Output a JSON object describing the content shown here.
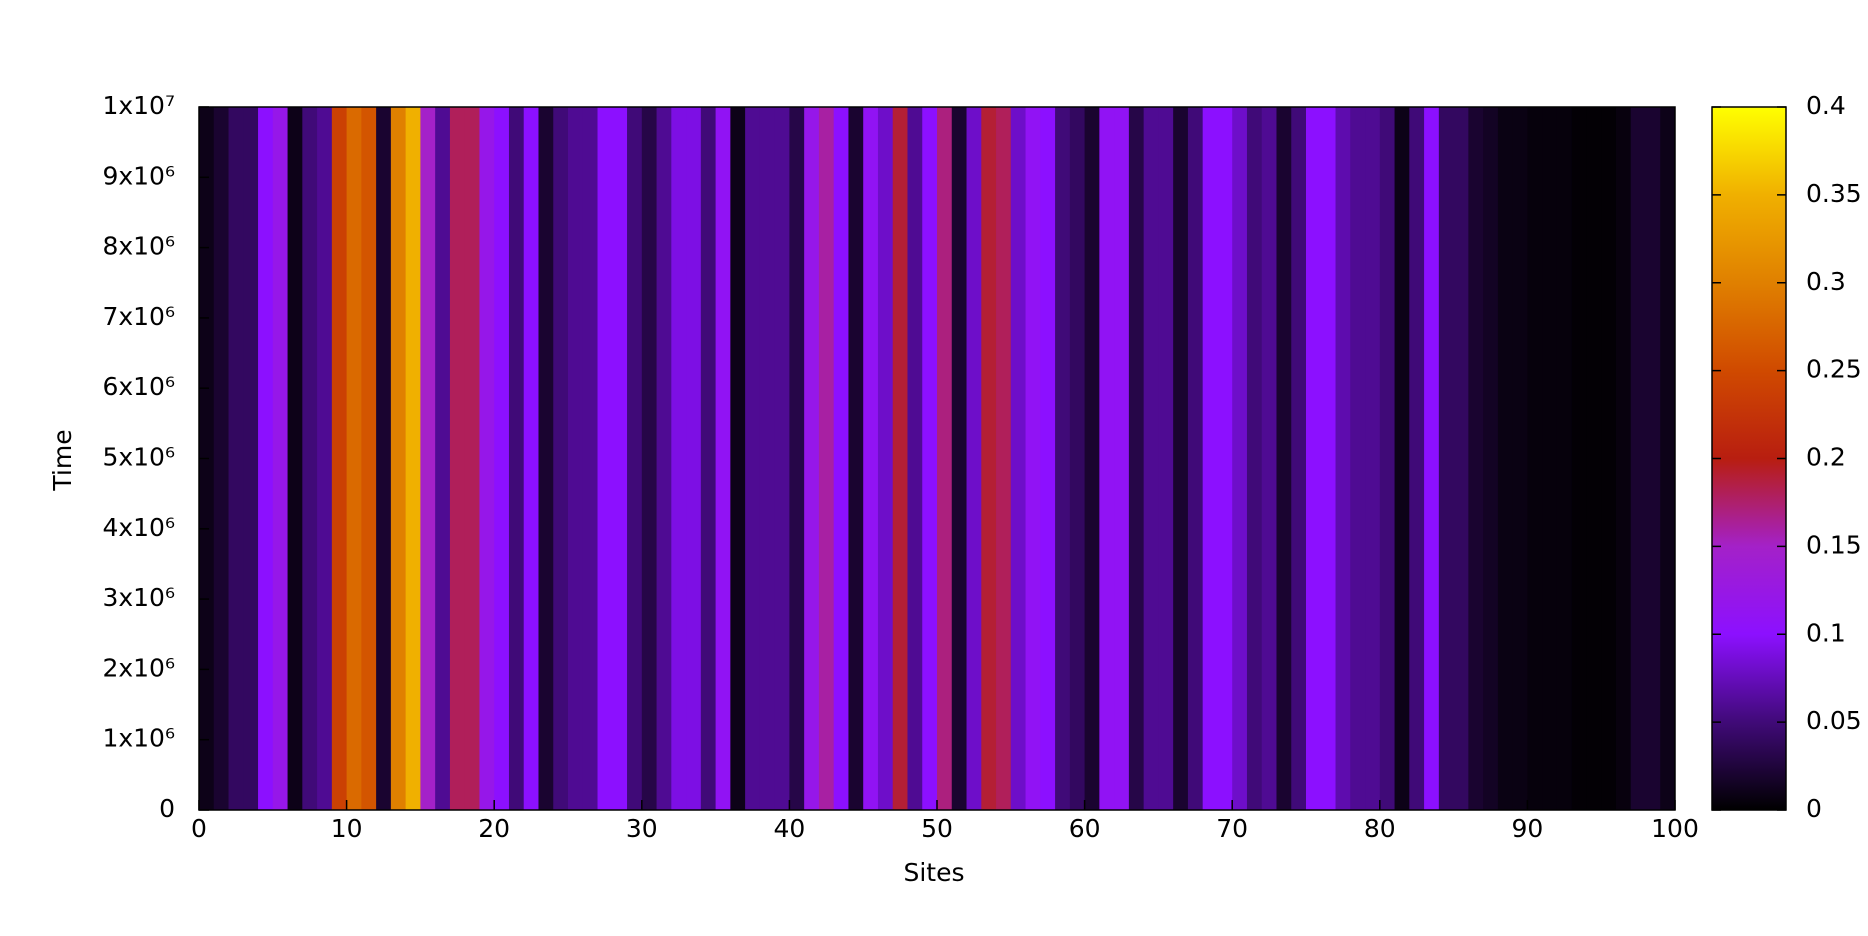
{
  "chart_data": {
    "type": "heatmap",
    "x_label": "Sites",
    "y_label": "Time",
    "x": [
      0.5,
      1.5,
      2.5,
      3.5,
      4.5,
      5.5,
      6.5,
      7.5,
      8.5,
      9.5,
      10.5,
      11.5,
      12.5,
      13.5,
      14.5,
      15.5,
      16.5,
      17.5,
      18.5,
      19.5,
      20.5,
      21.5,
      22.5,
      23.5,
      24.5,
      25.5,
      26.5,
      27.5,
      28.5,
      29.5,
      30.5,
      31.5,
      32.5,
      33.5,
      34.5,
      35.5,
      36.5,
      37.5,
      38.5,
      39.5,
      40.5,
      41.5,
      42.5,
      43.5,
      44.5,
      45.5,
      46.5,
      47.5,
      48.5,
      49.5,
      50.5,
      51.5,
      52.5,
      53.5,
      54.5,
      55.5,
      56.5,
      57.5,
      58.5,
      59.5,
      60.5,
      61.5,
      62.5,
      63.5,
      64.5,
      65.5,
      66.5,
      67.5,
      68.5,
      69.5,
      70.5,
      71.5,
      72.5,
      73.5,
      74.5,
      75.5,
      76.5,
      77.5,
      78.5,
      79.5,
      80.5,
      81.5,
      82.5,
      83.5,
      84.5,
      85.5,
      86.5,
      87.5,
      88.5,
      89.5,
      90.5,
      91.5,
      92.5,
      93.5,
      94.5,
      95.5,
      96.5,
      97.5,
      98.5,
      99.5
    ],
    "values": [
      0.01,
      0.02,
      0.04,
      0.04,
      0.1,
      0.12,
      0.01,
      0.05,
      0.06,
      0.24,
      0.28,
      0.26,
      0.02,
      0.3,
      0.35,
      0.15,
      0.06,
      0.18,
      0.18,
      0.12,
      0.1,
      0.05,
      0.1,
      0.02,
      0.05,
      0.06,
      0.06,
      0.1,
      0.1,
      0.05,
      0.03,
      0.06,
      0.09,
      0.09,
      0.05,
      0.11,
      0.01,
      0.06,
      0.06,
      0.06,
      0.03,
      0.12,
      0.16,
      0.1,
      0.02,
      0.11,
      0.08,
      0.19,
      0.06,
      0.1,
      0.17,
      0.02,
      0.08,
      0.19,
      0.18,
      0.08,
      0.11,
      0.1,
      0.05,
      0.04,
      0.02,
      0.11,
      0.11,
      0.03,
      0.06,
      0.06,
      0.02,
      0.05,
      0.1,
      0.1,
      0.08,
      0.05,
      0.06,
      0.02,
      0.05,
      0.1,
      0.1,
      0.07,
      0.06,
      0.06,
      0.05,
      0.01,
      0.05,
      0.1,
      0.04,
      0.04,
      0.02,
      0.015,
      0.008,
      0.008,
      0.005,
      0.005,
      0.005,
      0.002,
      0.002,
      0.002,
      0.006,
      0.02,
      0.02,
      0.01
    ],
    "xlim": [
      0,
      100
    ],
    "xticks": [
      0,
      10,
      20,
      30,
      40,
      50,
      60,
      70,
      80,
      90,
      100
    ],
    "ylim": [
      0,
      10000000
    ],
    "yticks": [
      0,
      {
        "value": 1000000,
        "label": "1x10⁶"
      },
      {
        "value": 2000000,
        "label": "2x10⁶"
      },
      {
        "value": 3000000,
        "label": "3x10⁶"
      },
      {
        "value": 4000000,
        "label": "4x10⁶"
      },
      {
        "value": 5000000,
        "label": "5x10⁶"
      },
      {
        "value": 6000000,
        "label": "6x10⁶"
      },
      {
        "value": 7000000,
        "label": "7x10⁶"
      },
      {
        "value": 8000000,
        "label": "8x10⁶"
      },
      {
        "value": 9000000,
        "label": "9x10⁶"
      },
      {
        "value": 10000000,
        "label": "1x10⁷"
      }
    ],
    "zlim": [
      0,
      0.4
    ],
    "zticks": [
      0,
      0.05,
      0.1,
      0.15,
      0.2,
      0.25,
      0.3,
      0.35,
      0.4
    ],
    "colormap": [
      "#000000",
      "#400a78",
      "#8c10ff",
      "#a421c8",
      "#b81e10",
      "#d04a00",
      "#e08000",
      "#f0b000",
      "#ffff00"
    ]
  }
}
